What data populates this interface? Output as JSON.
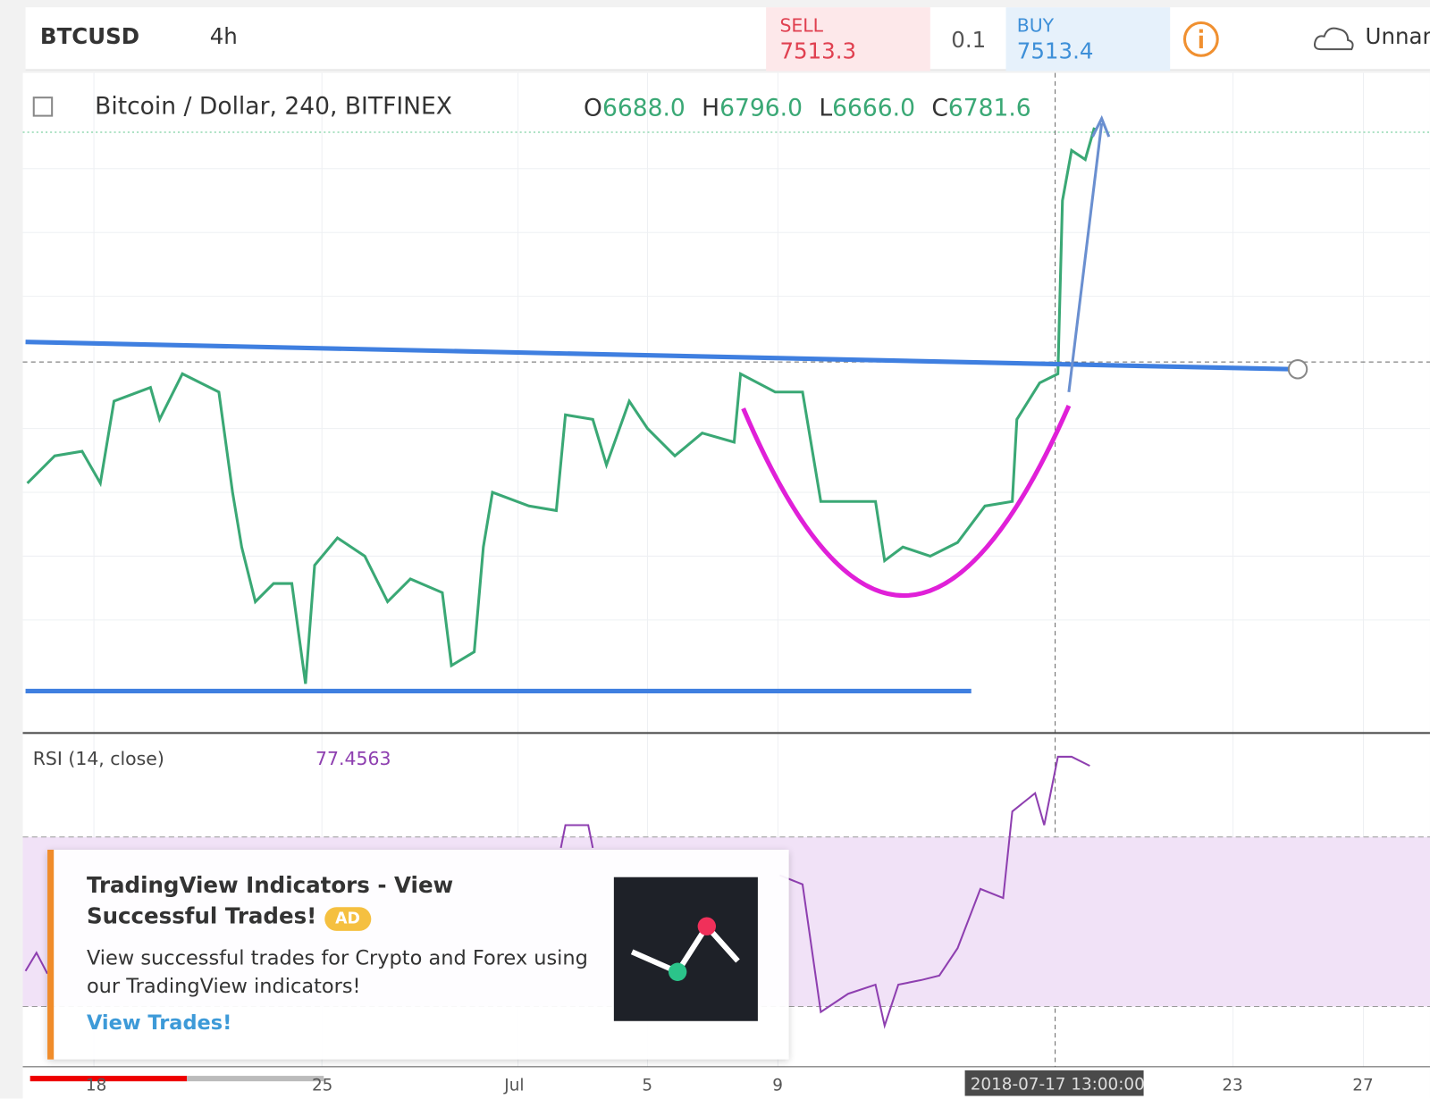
{
  "toolbar": {
    "symbol": "BTCUSD",
    "interval": "4h",
    "sell_label": "SELL",
    "sell_price": "7513.3",
    "quantity": "0.1",
    "buy_label": "BUY",
    "buy_price": "7513.4",
    "layout_name": "Unnam"
  },
  "legend": {
    "title": "Bitcoin / Dollar, 240, BITFINEX",
    "ohlc": [
      {
        "label": "O",
        "value": "6688.0"
      },
      {
        "label": "H",
        "value": "6796.0"
      },
      {
        "label": "L",
        "value": "6666.0"
      },
      {
        "label": "C",
        "value": "6781.6"
      }
    ]
  },
  "rsi": {
    "title": "RSI (14, close)",
    "value": "77.4563"
  },
  "x_axis": [
    "18",
    "25",
    "Jul",
    "5",
    "9",
    "23",
    "27"
  ],
  "crosshair_time": "2018-07-17 13:00:00",
  "ad": {
    "title": "TradingView Indicators - View Successful Trades!",
    "badge": "AD",
    "body": "View successful trades for Crypto and Forex using our TradingView indicators!",
    "link": "View Trades!"
  }
}
